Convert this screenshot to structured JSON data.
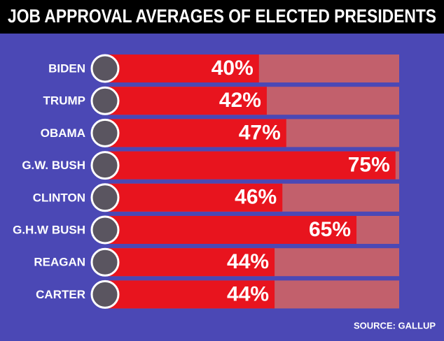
{
  "chart_data": {
    "type": "bar",
    "orientation": "horizontal",
    "title": "JOB APPROVAL AVERAGES OF ELECTED PRESIDENTS",
    "categories": [
      "BIDEN",
      "TRUMP",
      "OBAMA",
      "G.W. BUSH",
      "CLINTON",
      "G.H.W BUSH",
      "REAGAN",
      "CARTER"
    ],
    "values": [
      40,
      42,
      47,
      75,
      46,
      65,
      44,
      44
    ],
    "value_labels": [
      "40%",
      "42%",
      "47%",
      "75%",
      "46%",
      "65%",
      "44%",
      "44%"
    ],
    "color": "#e8141e",
    "source": "SOURCE: GALLUP"
  }
}
